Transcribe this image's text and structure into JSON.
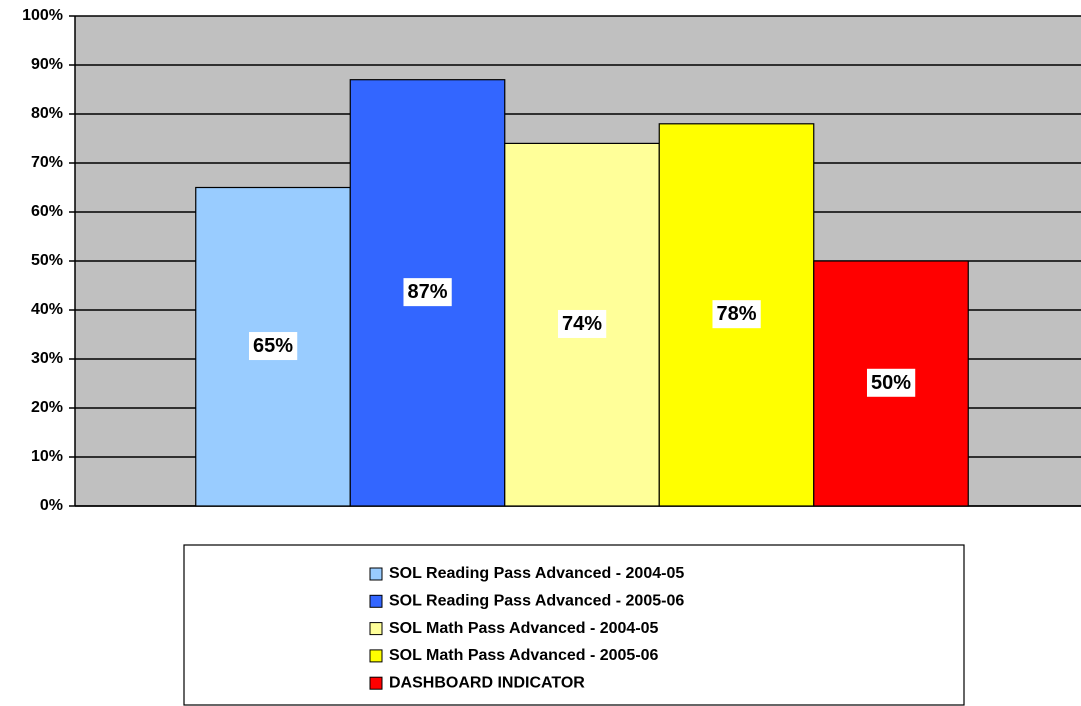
{
  "chart_data": {
    "type": "bar",
    "categories": [
      null
    ],
    "series": [
      {
        "name": "SOL Reading Pass Advanced - 2004-05",
        "color": "#99ccff",
        "values": [
          65
        ],
        "value_labels": [
          "65%"
        ]
      },
      {
        "name": "SOL Reading Pass Advanced - 2005-06",
        "color": "#3366ff",
        "values": [
          87
        ],
        "value_labels": [
          "87%"
        ]
      },
      {
        "name": "SOL Math Pass Advanced - 2004-05",
        "color": "#ffff99",
        "values": [
          74
        ],
        "value_labels": [
          "74%"
        ]
      },
      {
        "name": "SOL Math Pass Advanced - 2005-06",
        "color": "#ffff00",
        "values": [
          78
        ],
        "value_labels": [
          "78%"
        ]
      },
      {
        "name": "DASHBOARD INDICATOR",
        "color": "#ff0000",
        "values": [
          50
        ],
        "value_labels": [
          "50%"
        ]
      }
    ],
    "ylim": [
      0,
      100
    ],
    "yticks": [
      {
        "value": 0,
        "label": "0%"
      },
      {
        "value": 10,
        "label": "10%"
      },
      {
        "value": 20,
        "label": "20%"
      },
      {
        "value": 30,
        "label": "30%"
      },
      {
        "value": 40,
        "label": "40%"
      },
      {
        "value": 50,
        "label": "50%"
      },
      {
        "value": 60,
        "label": "60%"
      },
      {
        "value": 70,
        "label": "70%"
      },
      {
        "value": 80,
        "label": "80%"
      },
      {
        "value": 90,
        "label": "90%"
      },
      {
        "value": 100,
        "label": "100%"
      }
    ],
    "grid": true,
    "legend": "bottom"
  }
}
